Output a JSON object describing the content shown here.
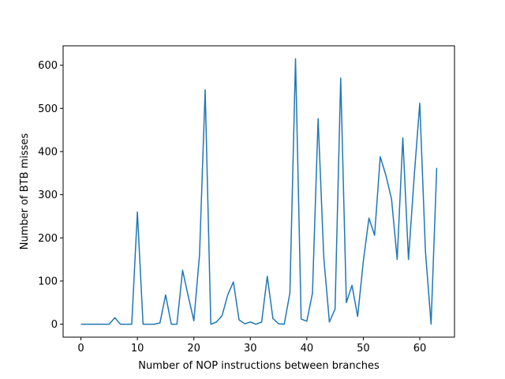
{
  "chart_data": {
    "type": "line",
    "title": "",
    "xlabel": "Number of NOP instructions between branches",
    "ylabel": "Number of BTB misses",
    "xlim": [
      -3.15,
      66.15
    ],
    "ylim": [
      -30,
      645
    ],
    "xticks": [
      0,
      10,
      20,
      30,
      40,
      50,
      60
    ],
    "yticks": [
      0,
      100,
      200,
      300,
      400,
      500,
      600
    ],
    "grid": false,
    "legend": "none",
    "series": [
      {
        "color": "#1f77b4",
        "x": [
          0,
          1,
          2,
          3,
          4,
          5,
          6,
          7,
          8,
          9,
          10,
          11,
          12,
          13,
          14,
          15,
          16,
          17,
          18,
          19,
          20,
          21,
          22,
          23,
          24,
          25,
          26,
          27,
          28,
          29,
          30,
          31,
          32,
          33,
          34,
          35,
          36,
          37,
          38,
          39,
          40,
          41,
          42,
          43,
          44,
          45,
          46,
          47,
          48,
          49,
          50,
          51,
          52,
          53,
          54,
          55,
          56,
          57,
          58,
          59,
          60,
          61,
          62,
          63
        ],
        "values": [
          0,
          0,
          0,
          0,
          0,
          0,
          15,
          0,
          0,
          0,
          260,
          0,
          0,
          0,
          3,
          68,
          0,
          0,
          125,
          65,
          8,
          160,
          543,
          0,
          5,
          20,
          68,
          98,
          10,
          1,
          5,
          0,
          5,
          111,
          13,
          1,
          0,
          72,
          615,
          12,
          7,
          72,
          476,
          155,
          5,
          35,
          570,
          50,
          90,
          18,
          145,
          246,
          206,
          388,
          345,
          290,
          150,
          432,
          150,
          340,
          512,
          170,
          0,
          362
        ]
      }
    ]
  }
}
